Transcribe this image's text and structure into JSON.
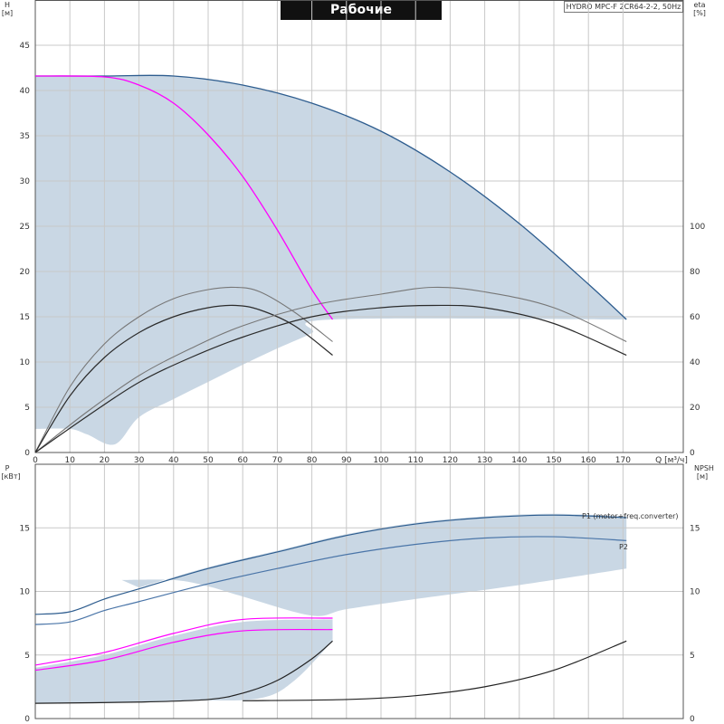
{
  "header": {
    "title": "Рабочие характеристики",
    "model": "HYDRO MPC-F 2CR64-2-2, 50Hz"
  },
  "colors": {
    "band_fill": "#c9d7e4",
    "pump_curve": "#2e5d8f",
    "system_curve": "#ff00ff",
    "efficiency_dark": "#2b2b2b",
    "efficiency_light": "#777777",
    "power_p1": "#2e5d8f",
    "power_p2": "#4a75a8",
    "npsh": "#222222",
    "grid": "#c8c8c8"
  },
  "chart_data": [
    {
      "type": "line",
      "name": "head-efficiency",
      "x_axis": {
        "label": "Q",
        "unit": "[м³/ч]",
        "range": [
          0,
          180
        ],
        "ticks": [
          0,
          10,
          20,
          30,
          40,
          50,
          60,
          70,
          80,
          90,
          100,
          110,
          120,
          130,
          140,
          150,
          160,
          170
        ]
      },
      "y_axis_left": {
        "label": "H",
        "unit": "[м]",
        "range": [
          0,
          50
        ],
        "ticks": [
          0,
          5,
          10,
          15,
          20,
          25,
          30,
          35,
          40,
          45
        ]
      },
      "y_axis_right": {
        "label": "eta",
        "unit": "[%]",
        "range": [
          0,
          100
        ],
        "ticks": [
          0,
          20,
          40,
          60,
          80,
          100
        ]
      },
      "grid": true,
      "band": {
        "upper": [
          [
            0,
            41.6
          ],
          [
            20,
            41.6
          ],
          [
            40,
            41.6
          ],
          [
            60,
            40.6
          ],
          [
            80,
            38.6
          ],
          [
            100,
            35.5
          ],
          [
            120,
            31.0
          ],
          [
            140,
            25.3
          ],
          [
            160,
            18.6
          ],
          [
            171,
            14.7
          ]
        ],
        "lower": [
          [
            171,
            14.7
          ],
          [
            86,
            14.7
          ],
          [
            80,
            13.2
          ],
          [
            70,
            11.5
          ],
          [
            60,
            9.7
          ],
          [
            50,
            7.8
          ],
          [
            40,
            5.9
          ],
          [
            30,
            3.9
          ],
          [
            23,
            0.9
          ],
          [
            15,
            2.0
          ],
          [
            10,
            2.6
          ],
          [
            0,
            2.6
          ]
        ]
      },
      "series": [
        {
          "role": "pump-curve-max",
          "axis": "H",
          "points": [
            [
              0,
              41.6
            ],
            [
              20,
              41.6
            ],
            [
              40,
              41.6
            ],
            [
              60,
              40.6
            ],
            [
              80,
              38.6
            ],
            [
              100,
              35.5
            ],
            [
              120,
              31.0
            ],
            [
              140,
              25.3
            ],
            [
              160,
              18.6
            ],
            [
              171,
              14.7
            ]
          ]
        },
        {
          "role": "system-curve",
          "axis": "H",
          "points": [
            [
              0,
              41.6
            ],
            [
              20,
              41.5
            ],
            [
              30,
              40.6
            ],
            [
              40,
              38.6
            ],
            [
              50,
              35.1
            ],
            [
              60,
              30.5
            ],
            [
              70,
              24.6
            ],
            [
              80,
              18.0
            ],
            [
              86,
              14.7
            ]
          ]
        },
        {
          "role": "eta-1pump-light",
          "axis": "eta",
          "points": [
            [
              0,
              0
            ],
            [
              10,
              29
            ],
            [
              20,
              48
            ],
            [
              30,
              60
            ],
            [
              40,
              68
            ],
            [
              50,
              72
            ],
            [
              58,
              73
            ],
            [
              65,
              71
            ],
            [
              75,
              62
            ],
            [
              86,
              49
            ]
          ]
        },
        {
          "role": "eta-1pump-dark",
          "axis": "eta",
          "points": [
            [
              0,
              0
            ],
            [
              10,
              25
            ],
            [
              20,
              42
            ],
            [
              30,
              53
            ],
            [
              40,
              60
            ],
            [
              50,
              64
            ],
            [
              58,
              65
            ],
            [
              65,
              63
            ],
            [
              75,
              56
            ],
            [
              86,
              43
            ]
          ]
        },
        {
          "role": "eta-2pump-light",
          "axis": "eta",
          "points": [
            [
              0,
              0
            ],
            [
              15,
              18
            ],
            [
              30,
              34
            ],
            [
              45,
              46
            ],
            [
              60,
              56
            ],
            [
              80,
              65
            ],
            [
              100,
              70
            ],
            [
              115,
              73
            ],
            [
              130,
              71
            ],
            [
              150,
              64
            ],
            [
              171,
              49
            ]
          ]
        },
        {
          "role": "eta-2pump-dark",
          "axis": "eta",
          "points": [
            [
              0,
              0
            ],
            [
              15,
              16
            ],
            [
              30,
              31
            ],
            [
              45,
              42
            ],
            [
              60,
              51
            ],
            [
              80,
              60
            ],
            [
              100,
              64
            ],
            [
              115,
              65
            ],
            [
              130,
              64
            ],
            [
              150,
              57
            ],
            [
              171,
              43
            ]
          ]
        }
      ]
    },
    {
      "type": "line",
      "name": "power-npsh",
      "y_axis_left": {
        "label": "P",
        "unit": "[кВт]",
        "range": [
          0,
          19.5
        ],
        "ticks": [
          0,
          5,
          10,
          15
        ]
      },
      "y_axis_right": {
        "label": "NPSH",
        "unit": "[м]",
        "range": [
          0,
          19.5
        ],
        "ticks": [
          0,
          5,
          10,
          15
        ]
      },
      "grid": true,
      "series": [
        {
          "name": "P1 (motor+freq.converter)",
          "axis": "P",
          "points": [
            [
              0,
              8.2
            ],
            [
              10,
              8.4
            ],
            [
              20,
              9.4
            ],
            [
              30,
              10.2
            ],
            [
              50,
              11.8
            ],
            [
              70,
              13.1
            ],
            [
              90,
              14.4
            ],
            [
              110,
              15.3
            ],
            [
              130,
              15.8
            ],
            [
              150,
              16.0
            ],
            [
              171,
              15.8
            ]
          ]
        },
        {
          "name": "P2",
          "axis": "P",
          "points": [
            [
              0,
              7.4
            ],
            [
              10,
              7.6
            ],
            [
              20,
              8.5
            ],
            [
              30,
              9.2
            ],
            [
              50,
              10.6
            ],
            [
              70,
              11.8
            ],
            [
              90,
              12.9
            ],
            [
              110,
              13.7
            ],
            [
              130,
              14.2
            ],
            [
              150,
              14.3
            ],
            [
              171,
              14.0
            ]
          ]
        },
        {
          "role": "system-p1",
          "axis": "P",
          "points": [
            [
              0,
              4.2
            ],
            [
              20,
              5.2
            ],
            [
              40,
              6.7
            ],
            [
              60,
              7.8
            ],
            [
              86,
              7.9
            ]
          ]
        },
        {
          "role": "system-p2",
          "axis": "P",
          "points": [
            [
              0,
              3.8
            ],
            [
              20,
              4.6
            ],
            [
              40,
              6.0
            ],
            [
              60,
              6.9
            ],
            [
              86,
              7.0
            ]
          ]
        },
        {
          "role": "npsh-1pump",
          "axis": "NPSH",
          "points": [
            [
              0,
              1.2
            ],
            [
              30,
              1.3
            ],
            [
              50,
              1.5
            ],
            [
              60,
              2.0
            ],
            [
              70,
              3.0
            ],
            [
              80,
              4.7
            ],
            [
              86,
              6.1
            ]
          ]
        },
        {
          "role": "npsh-2pump",
          "axis": "NPSH",
          "points": [
            [
              60,
              1.4
            ],
            [
              90,
              1.5
            ],
            [
              110,
              1.8
            ],
            [
              130,
              2.5
            ],
            [
              150,
              3.8
            ],
            [
              171,
              6.1
            ]
          ]
        }
      ]
    }
  ]
}
